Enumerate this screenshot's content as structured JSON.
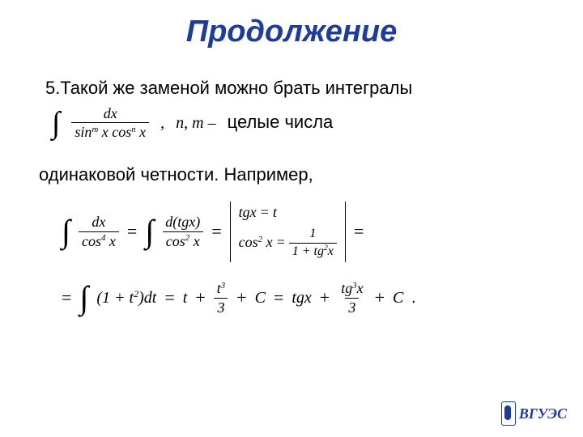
{
  "colors": {
    "title": "#1f3b9b",
    "body": "#000000",
    "logo": "#1f3b9b",
    "background": "#ffffff"
  },
  "title": "Продолжение",
  "line1": "5.Такой же заменой можно брать интегралы",
  "formula1": {
    "integral_num": "dx",
    "integral_den_left": "sin",
    "integral_den_exp1": "m",
    "integral_den_mid": " x cos",
    "integral_den_exp2": "n",
    "integral_den_right": " x",
    "comma": ",",
    "nm": "n, m –",
    "after": "целые числа"
  },
  "line3": "одинаковой четности. Например,",
  "eq": {
    "lhs_num": "dx",
    "lhs_den_base": "cos",
    "lhs_den_exp": "4",
    "lhs_den_arg": " x",
    "mid_num": "d(tgx)",
    "mid_den_base": "cos",
    "mid_den_exp": "2",
    "mid_den_arg": " x",
    "subst_r1_left": "tgx",
    "subst_r1_right": "t",
    "subst_r2_left_base": "cos",
    "subst_r2_left_exp": "2",
    "subst_r2_left_arg": " x",
    "subst_r2_frac_num": "1",
    "subst_r2_frac_den_left": "1 + tg",
    "subst_r2_frac_den_exp": "2",
    "subst_r2_frac_den_right": "x",
    "row2_int_inner_left": "(1 + t",
    "row2_int_inner_exp": "2",
    "row2_int_inner_right": ")dt",
    "row2_t": "t",
    "row2_frac1_num_base": "t",
    "row2_frac1_num_exp": "3",
    "row2_frac1_den": "3",
    "row2_C1": "C",
    "row2_tgx": "tgx",
    "row2_frac2_num_base": "tg",
    "row2_frac2_num_exp": "3",
    "row2_frac2_num_arg": "x",
    "row2_frac2_den": "3",
    "row2_C2": "C",
    "period": "."
  },
  "logo_text": "ВГУЭС"
}
